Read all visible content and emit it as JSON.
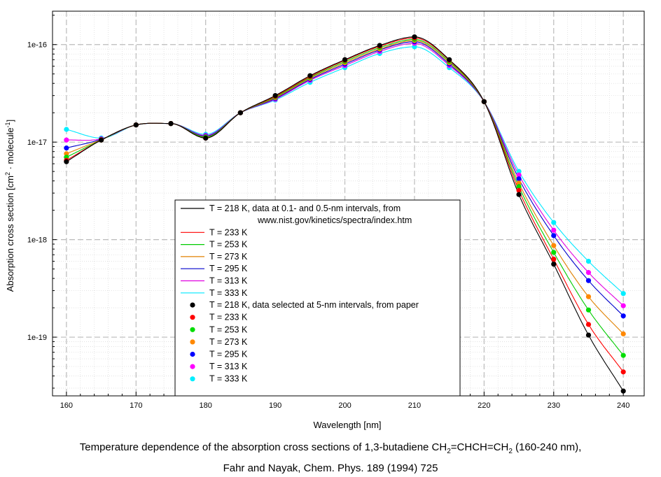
{
  "chart_data": {
    "type": "line",
    "xlabel": "Wavelength [nm]",
    "ylabel_text": "Absorption cross section [cm",
    "ylabel_sup1": "2",
    "ylabel_mid": " · molecule",
    "ylabel_sup2": "-1",
    "ylabel_end": "]",
    "xlim": [
      158,
      243
    ],
    "ylim": [
      2.5e-20,
      2.2e-16
    ],
    "log_y": true,
    "grid": true,
    "legend_placement": "lower-center",
    "x_ticks": [
      "160",
      "170",
      "180",
      "190",
      "200",
      "210",
      "220",
      "230",
      "240"
    ],
    "y_ticks": [
      "1e-16",
      "1e-17",
      "1e-18",
      "1e-19"
    ],
    "x_points": [
      160,
      165,
      170,
      175,
      180,
      185,
      190,
      195,
      200,
      205,
      210,
      215,
      220,
      225,
      230,
      235,
      240
    ],
    "line_series": [
      {
        "name": "T = 218 K, data at 0.1- and 0.5-nm intervals, from",
        "name_line2": "www.nist.gov/kinetics/spectra/index.htm",
        "color": "#000000"
      },
      {
        "name": "T = 233 K",
        "color": "#ff0000"
      },
      {
        "name": "T = 253 K",
        "color": "#00cc00"
      },
      {
        "name": "T = 273 K",
        "color": "#e08000"
      },
      {
        "name": "T = 295 K",
        "color": "#0000cc"
      },
      {
        "name": "T = 313 K",
        "color": "#e000e0"
      },
      {
        "name": "T = 333 K",
        "color": "#00e8ff"
      }
    ],
    "point_series": [
      {
        "name": "T = 218 K, data selected at 5-nm intervals, from paper",
        "color": "#000000",
        "values": [
          6.3e-18,
          1.05e-17,
          1.5e-17,
          1.55e-17,
          1.1e-17,
          2e-17,
          3e-17,
          4.8e-17,
          7e-17,
          9.8e-17,
          1.2e-16,
          7e-17,
          2.6e-17,
          2.9e-18,
          5.6e-19,
          1.05e-19,
          2.8e-20
        ]
      },
      {
        "name": "T = 233 K",
        "color": "#ff0000",
        "values": [
          6.5e-18,
          1.05e-17,
          1.5e-17,
          1.55e-17,
          1.1e-17,
          2e-17,
          2.95e-17,
          4.7e-17,
          6.9e-17,
          9.6e-17,
          1.17e-16,
          6.9e-17,
          2.6e-17,
          3.2e-18,
          6.3e-19,
          1.35e-19,
          4.4e-20
        ]
      },
      {
        "name": "T = 253 K",
        "color": "#00dd00",
        "values": [
          7e-18,
          1.05e-17,
          1.5e-17,
          1.55e-17,
          1.12e-17,
          2e-17,
          2.9e-17,
          4.6e-17,
          6.7e-17,
          9.3e-17,
          1.13e-16,
          6.7e-17,
          2.6e-17,
          3.5e-18,
          7.4e-19,
          1.9e-19,
          6.5e-20
        ]
      },
      {
        "name": "T = 273 K",
        "color": "#ff8800",
        "values": [
          7.6e-18,
          1.06e-17,
          1.5e-17,
          1.55e-17,
          1.13e-17,
          2e-17,
          2.85e-17,
          4.5e-17,
          6.5e-17,
          9e-17,
          1.1e-16,
          6.5e-17,
          2.6e-17,
          3.8e-18,
          8.7e-19,
          2.6e-19,
          1.08e-19
        ]
      },
      {
        "name": "T = 295 K",
        "color": "#0000ff",
        "values": [
          8.7e-18,
          1.07e-17,
          1.5e-17,
          1.55e-17,
          1.15e-17,
          2e-17,
          2.8e-17,
          4.4e-17,
          6.3e-17,
          8.8e-17,
          1.07e-16,
          6.3e-17,
          2.6e-17,
          4.2e-18,
          1.1e-18,
          3.8e-19,
          1.65e-19
        ]
      },
      {
        "name": "T = 313 K",
        "color": "#ff00ff",
        "values": [
          1.05e-17,
          1.08e-17,
          1.5e-17,
          1.55e-17,
          1.17e-17,
          2e-17,
          2.75e-17,
          4.3e-17,
          6.1e-17,
          8.5e-17,
          1.03e-16,
          6.1e-17,
          2.6e-17,
          4.6e-18,
          1.25e-18,
          4.6e-19,
          2.1e-19
        ]
      },
      {
        "name": "T = 333 K",
        "color": "#00eeff",
        "values": [
          1.35e-17,
          1.1e-17,
          1.5e-17,
          1.55e-17,
          1.2e-17,
          2e-17,
          2.7e-17,
          4.1e-17,
          5.8e-17,
          8.1e-17,
          9.5e-17,
          5.8e-17,
          2.6e-17,
          5e-18,
          1.5e-18,
          6e-19,
          2.8e-19
        ]
      }
    ]
  },
  "caption": {
    "line1_part1": "Temperature dependence of the absorption cross sections of 1,3-butadiene CH",
    "sub1": "2",
    "line1_part2": "=CHCH=CH",
    "sub2": "2",
    "line1_part3": " (160-240 nm),",
    "line2": "Fahr and Nayak, Chem. Phys. 189 (1994) 725"
  }
}
